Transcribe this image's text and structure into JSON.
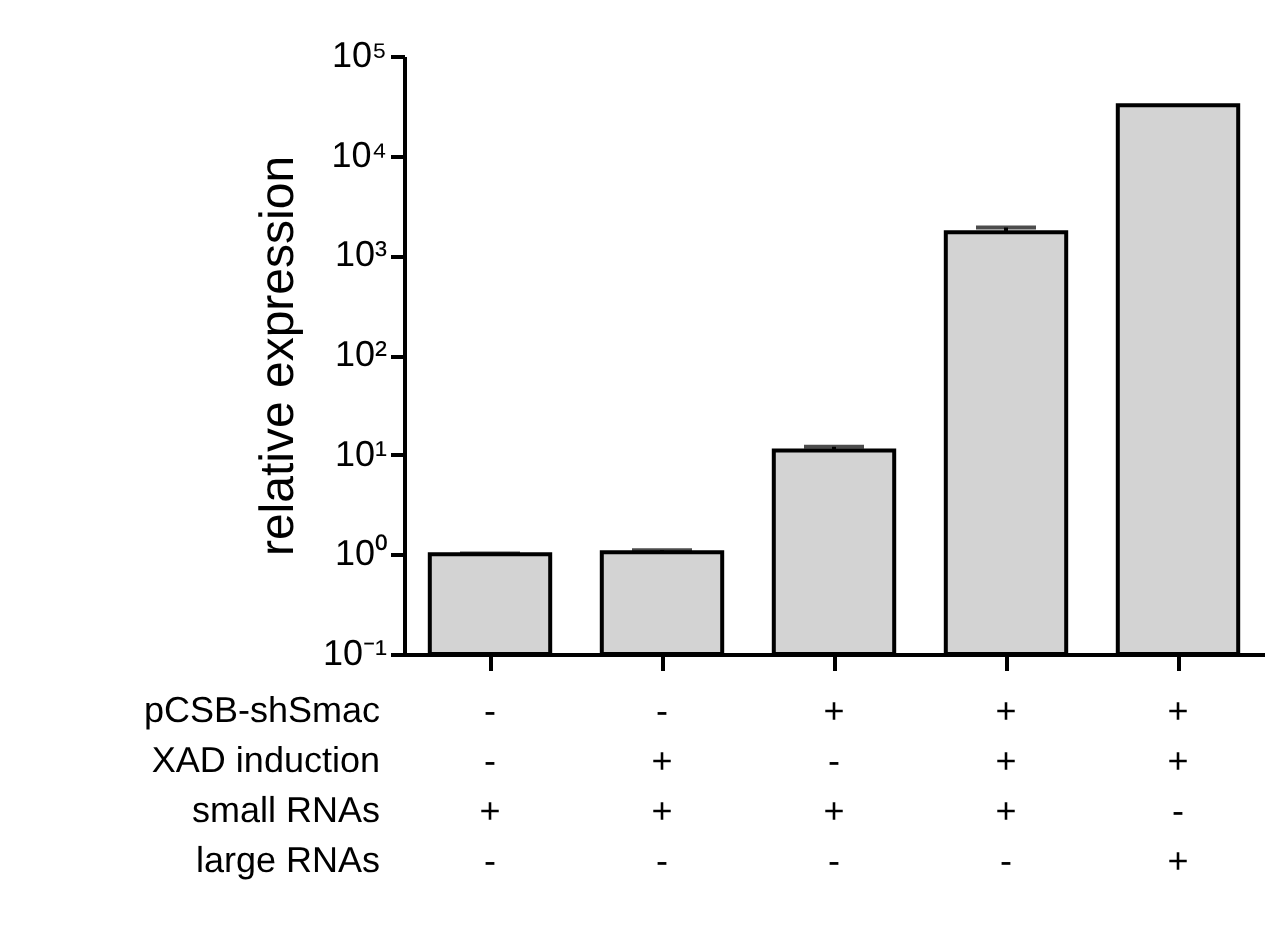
{
  "chart_data": {
    "type": "bar",
    "ylabel": "relative expression",
    "categories": [
      "-\n-\n+\n-",
      "-\n+\n+\n-",
      "+\n-\n+\n-",
      "+\n+\n+\n-",
      "+\n+\n-\n+"
    ],
    "values": [
      1.0,
      1.05,
      11,
      1700,
      32000
    ],
    "errors": [
      0.02,
      0.05,
      1,
      200,
      null
    ],
    "color": "#d3d3d3",
    "log": true,
    "ylim": [
      0.1,
      100000
    ],
    "yticks": [
      {
        "value": 0.1,
        "label": "10⁻¹"
      },
      {
        "value": 1,
        "label": "10⁰"
      },
      {
        "value": 10,
        "label": "10¹"
      },
      {
        "value": 100,
        "label": "10²"
      },
      {
        "value": 1000,
        "label": "10³"
      },
      {
        "value": 10000,
        "label": "10⁴"
      },
      {
        "value": 100000,
        "label": "10⁵"
      }
    ],
    "grid": false,
    "annotations": [
      "pCSB-shSmac",
      "XAD induction",
      "small RNAs",
      "large RNAs"
    ]
  }
}
